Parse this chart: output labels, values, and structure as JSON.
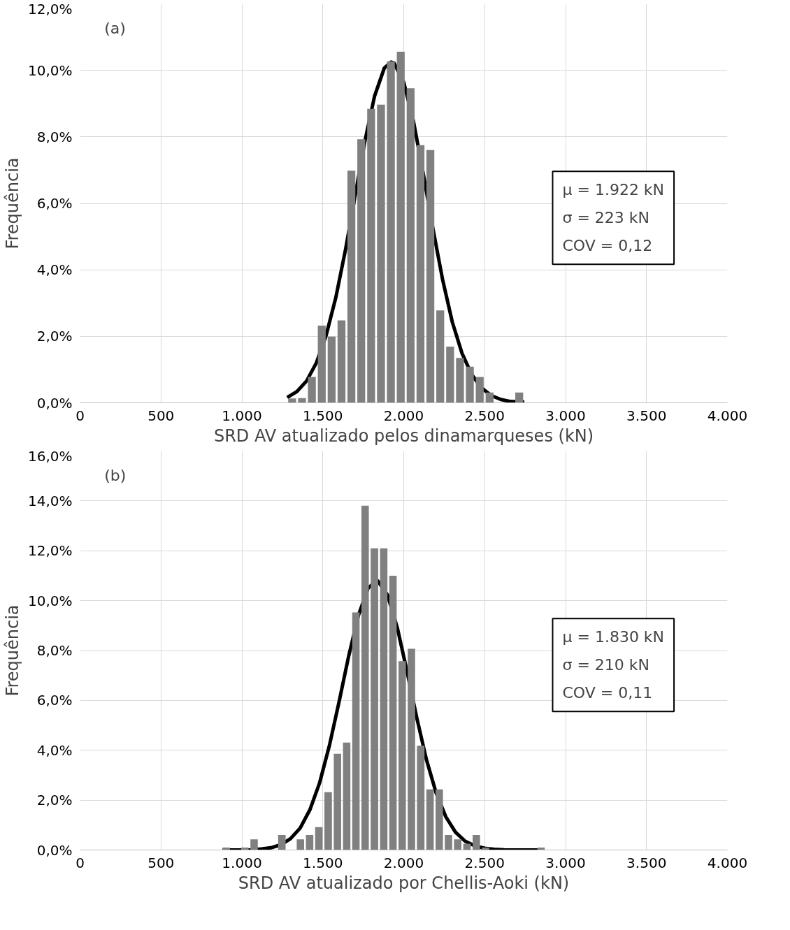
{
  "chart_data": [
    {
      "type": "histogram",
      "xlabel": "SRD AV atualizado pelos dinamarqueses (kN)",
      "ylabel": "Frequência",
      "annotations": [
        "(a)",
        "μ = 1.922 kN",
        "σ = 223 kN",
        "COV = 0,12"
      ],
      "bins": [
        1280,
        1341,
        1402,
        1463,
        1524,
        1585,
        1646,
        1707,
        1768,
        1829,
        1890,
        1951,
        2012,
        2073,
        2134,
        2195,
        2256,
        2317,
        2378,
        2439,
        2500,
        2561,
        2622,
        2683,
        2744
      ],
      "values": [
        0.13,
        0.14,
        0.78,
        2.32,
        1.99,
        2.48,
        6.98,
        7.93,
        8.84,
        8.97,
        10.27,
        10.56,
        9.46,
        7.75,
        7.6,
        2.78,
        1.69,
        1.35,
        1.09,
        0.78,
        0.31,
        0,
        0,
        0.31
      ],
      "color": "#808080",
      "series": [
        {
          "type": "line",
          "color": "#000000",
          "x": [
            1280,
            1340,
            1400,
            1460,
            1520,
            1580,
            1640,
            1700,
            1760,
            1820,
            1880,
            1922,
            1940,
            2000,
            2060,
            2120,
            2180,
            2240,
            2300,
            2360,
            2420,
            2480,
            2540,
            2600,
            2660,
            2745
          ],
          "values": [
            0.16,
            0.34,
            0.66,
            1.2,
            2.02,
            3.16,
            4.6,
            6.24,
            7.87,
            9.23,
            10.07,
            10.25,
            10.22,
            9.64,
            8.47,
            6.91,
            5.25,
            3.71,
            2.43,
            1.49,
            0.85,
            0.45,
            0.22,
            0.1,
            0.04,
            0.02
          ]
        }
      ],
      "xlim": [
        0,
        4000
      ],
      "xticks": [
        0,
        500,
        {
          "value": 1000,
          "label": "1.000"
        },
        {
          "value": 1500,
          "label": "1.500"
        },
        {
          "value": 2000,
          "label": "2.000"
        },
        {
          "value": 2500,
          "label": "2.500"
        },
        {
          "value": 3000,
          "label": "3.000"
        },
        {
          "value": 3500,
          "label": "3.500"
        },
        {
          "value": 4000,
          "label": "4.000"
        }
      ],
      "ylim": [
        0,
        12
      ],
      "yticks": [
        {
          "value": 0,
          "label": "0,0%"
        },
        {
          "value": 2,
          "label": "2,0%"
        },
        {
          "value": 4,
          "label": "4,0%"
        },
        {
          "value": 6,
          "label": "6,0%"
        },
        {
          "value": 8,
          "label": "8,0%"
        },
        {
          "value": 10,
          "label": "10,0%"
        },
        {
          "value": 12,
          "label": "12,0%"
        }
      ],
      "grid": true
    },
    {
      "type": "histogram",
      "xlabel": "SRD AV atualizado por Chellis-Aoki (kN)",
      "ylabel": "Frequência",
      "annotations": [
        "(b)",
        "μ = 1.830 kN",
        "σ = 210 kN",
        "COV = 0,11"
      ],
      "bins": [
        875,
        932,
        990,
        1047,
        1104,
        1161,
        1218,
        1276,
        1333,
        1390,
        1447,
        1504,
        1562,
        1619,
        1676,
        1733,
        1790,
        1848,
        1905,
        1962,
        2019,
        2076,
        2134,
        2191,
        2248,
        2305,
        2362,
        2420,
        2477,
        2534,
        2591,
        2648,
        2706,
        2763,
        2820,
        2877
      ],
      "values": [
        0.1,
        0,
        0.1,
        0.43,
        0,
        0,
        0.6,
        0,
        0.43,
        0.6,
        0.92,
        2.32,
        3.86,
        4.31,
        9.53,
        13.81,
        12.1,
        12.1,
        11.0,
        7.57,
        8.07,
        4.18,
        2.43,
        2.43,
        0.6,
        0.43,
        0.25,
        0.6,
        0.1,
        0,
        0,
        0,
        0,
        0,
        0.1
      ],
      "color": "#808080",
      "series": [
        {
          "type": "line",
          "color": "#000000",
          "x": [
            880,
            940,
            1000,
            1060,
            1120,
            1180,
            1240,
            1300,
            1360,
            1420,
            1480,
            1540,
            1600,
            1660,
            1720,
            1780,
            1830,
            1840,
            1900,
            1960,
            2020,
            2080,
            2140,
            2200,
            2260,
            2320,
            2380,
            2440,
            2500,
            2560,
            2620,
            2680,
            2740,
            2800,
            2860
          ],
          "values": [
            0,
            0,
            0,
            0.01,
            0.04,
            0.09,
            0.21,
            0.45,
            0.88,
            1.61,
            2.69,
            4.17,
            5.93,
            7.78,
            9.41,
            10.5,
            10.8,
            10.79,
            10.22,
            8.92,
            7.17,
            5.32,
            3.63,
            2.29,
            1.33,
            0.71,
            0.35,
            0.16,
            0.07,
            0.03,
            0.01,
            0,
            0,
            0,
            0
          ]
        }
      ],
      "xlim": [
        0,
        4000
      ],
      "xticks": [
        0,
        500,
        {
          "value": 1000,
          "label": "1.000"
        },
        {
          "value": 1500,
          "label": "1.500"
        },
        {
          "value": 2000,
          "label": "2.000"
        },
        {
          "value": 2500,
          "label": "2.500"
        },
        {
          "value": 3000,
          "label": "3.000"
        },
        {
          "value": 3500,
          "label": "3.500"
        },
        {
          "value": 4000,
          "label": "4.000"
        }
      ],
      "ylim": [
        0,
        16
      ],
      "yticks": [
        {
          "value": 0,
          "label": "0,0%"
        },
        {
          "value": 2,
          "label": "2,0%"
        },
        {
          "value": 4,
          "label": "4,0%"
        },
        {
          "value": 6,
          "label": "6,0%"
        },
        {
          "value": 8,
          "label": "8,0%"
        },
        {
          "value": 10,
          "label": "10,0%"
        },
        {
          "value": 12,
          "label": "12,0%"
        },
        {
          "value": 14,
          "label": "14,0%"
        },
        {
          "value": 16,
          "label": "16,0%"
        }
      ],
      "grid": true
    }
  ]
}
